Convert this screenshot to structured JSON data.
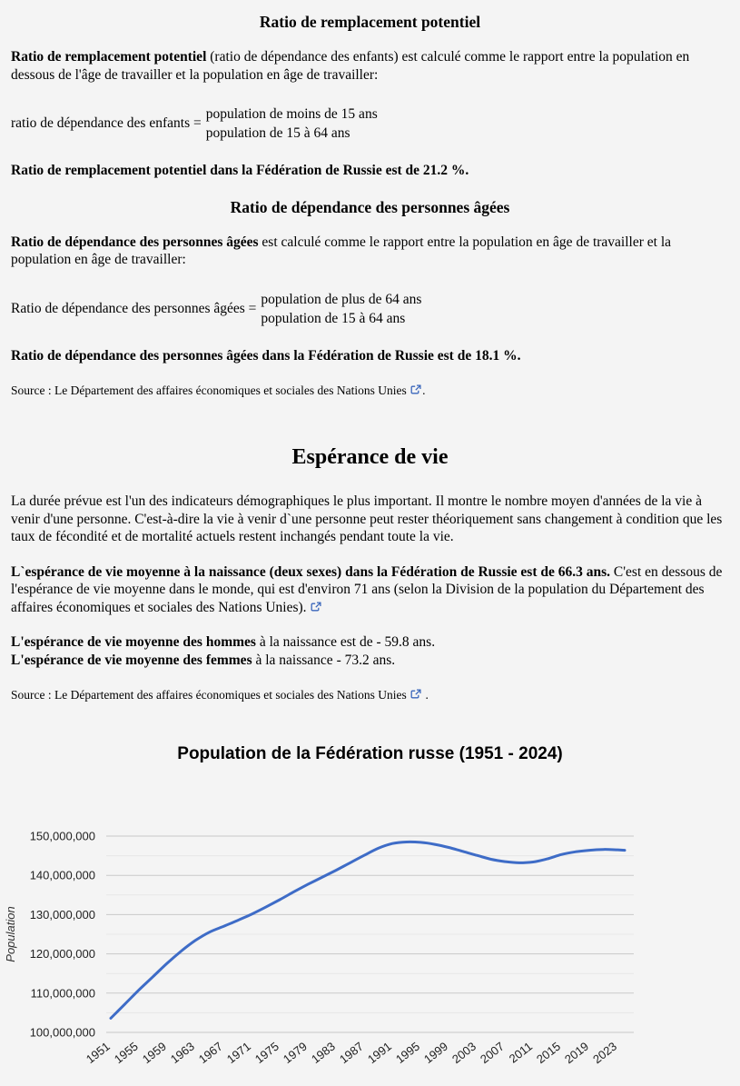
{
  "sections": {
    "replacement": {
      "heading": "Ratio de remplacement potentiel",
      "para_bold": "Ratio de remplacement potentiel",
      "para_rest": " (ratio de dépendance des enfants) est calculé comme le rapport entre la population en dessous de l'âge de travailler et la population en âge de travailler:",
      "formula_label": "ratio de dépendance des enfants =",
      "formula_numerator": "population de moins de 15 ans",
      "formula_denominator": "population de 15 à 64 ans",
      "result": "Ratio de remplacement potentiel dans la Fédération de Russie est de 21.2 %."
    },
    "aged": {
      "heading": "Ratio de dépendance des personnes âgées",
      "para_bold": "Ratio de dépendance des personnes âgées",
      "para_rest": " est calculé comme le rapport entre la population en âge de travailler et la population en âge de travailler:",
      "formula_label": "Ratio de dépendance des personnes âgées =",
      "formula_numerator": "population de plus de 64 ans",
      "formula_denominator": "population de 15 à 64 ans",
      "result": "Ratio de dépendance des personnes âgées dans la Fédération de Russie est de 18.1 %.",
      "source_text": "Source : Le Département des affaires économiques et sociales des Nations Unies",
      "source_suffix": "."
    },
    "life": {
      "heading": "Espérance de vie",
      "para1": "La durée prévue est l'un des indicateurs démographiques le plus important. Il montre le nombre moyen d'années de la vie à venir d'une personne. C'est-à-dire la vie à venir d`une personne peut rester théoriquement sans changement à condition que les taux de fécondité et de mortalité actuels restent inchangés pendant toute la vie.",
      "para2_bold": "L`espérance de vie moyenne à la naissance (deux sexes) dans la Fédération de Russie est de 66.3 ans.",
      "para2_rest": " C'est en dessous de l'espérance de vie moyenne dans le monde, qui est d'environ 71 ans (selon la Division de la population du Département des affaires économiques et sociales des Nations Unies).",
      "line_men_bold": "L'espérance de vie moyenne des hommes",
      "line_men_rest": " à la naissance est de - 59.8 ans.",
      "line_women_bold": "L'espérance de vie moyenne des femmes",
      "line_women_rest": " à la naissance - 73.2 ans.",
      "source_text": "Source : Le Département des affaires économiques et sociales des Nations Unies",
      "source_suffix": " ."
    }
  },
  "colors": {
    "background": "#f4f4f4",
    "text": "#000000",
    "link_icon": "#3a66bb",
    "chart_line": "#3e6cc7",
    "grid_major": "#c9c9c9",
    "grid_minor": "#e7e7e7",
    "axis_text": "#1f1f1f"
  },
  "chart_data": {
    "type": "line",
    "title": "Population de la Fédération russe (1951 - 2024)",
    "ylabel": "Population",
    "xlabel": "",
    "legend": "none",
    "grid": true,
    "xlim": [
      1951,
      2024
    ],
    "ylim": [
      100000000,
      150000000
    ],
    "minor_grid_step": 5000000,
    "y_ticks": [
      100000000,
      110000000,
      120000000,
      130000000,
      140000000,
      150000000
    ],
    "y_tick_labels": [
      "100,000,000",
      "110,000,000",
      "120,000,000",
      "130,000,000",
      "140,000,000",
      "150,000,000"
    ],
    "x_tick_labels": [
      "1951",
      "1955",
      "1959",
      "1963",
      "1967",
      "1971",
      "1975",
      "1979",
      "1983",
      "1987",
      "1991",
      "1995",
      "1999",
      "2003",
      "2007",
      "2011",
      "2015",
      "2019",
      "2023"
    ],
    "x": [
      1951,
      1953,
      1955,
      1957,
      1959,
      1961,
      1963,
      1965,
      1967,
      1969,
      1971,
      1973,
      1975,
      1977,
      1979,
      1981,
      1983,
      1985,
      1987,
      1989,
      1991,
      1993,
      1995,
      1997,
      1999,
      2001,
      2003,
      2005,
      2007,
      2009,
      2011,
      2013,
      2015,
      2017,
      2019,
      2021,
      2023,
      2024
    ],
    "values": [
      103600000,
      107200000,
      110800000,
      114200000,
      117600000,
      120700000,
      123400000,
      125500000,
      127000000,
      128500000,
      130100000,
      131900000,
      133800000,
      135800000,
      137700000,
      139500000,
      141300000,
      143200000,
      145100000,
      146900000,
      148100000,
      148500000,
      148400000,
      147900000,
      147100000,
      146100000,
      145100000,
      144100000,
      143500000,
      143200000,
      143400000,
      144200000,
      145300000,
      146000000,
      146400000,
      146600000,
      146500000,
      146400000
    ]
  }
}
